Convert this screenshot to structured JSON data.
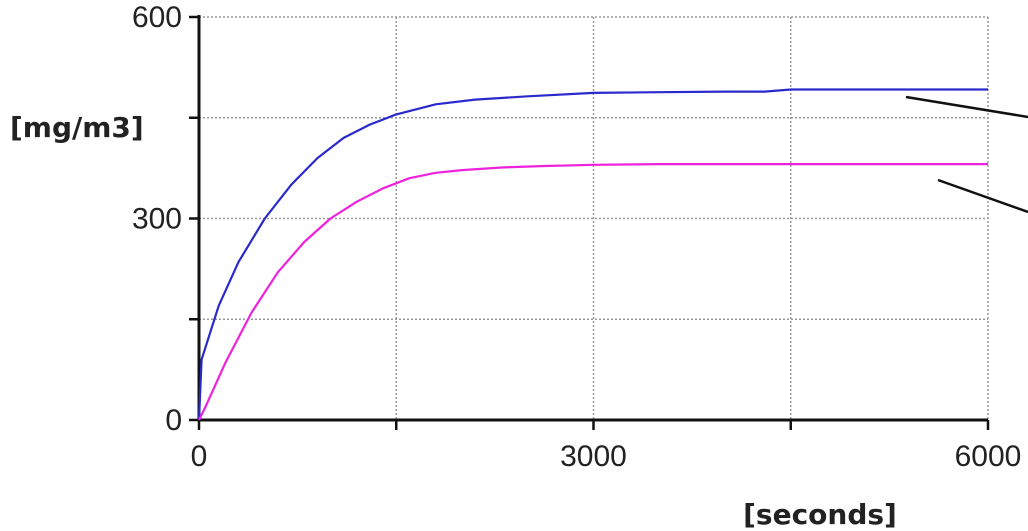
{
  "chart_data": {
    "type": "line",
    "title": "",
    "xlabel": "[seconds]",
    "ylabel": "[mg/m3]",
    "xlim": [
      0,
      6000
    ],
    "ylim": [
      0,
      600
    ],
    "x_ticks": [
      0,
      1500,
      3000,
      4500,
      6000
    ],
    "x_tick_labels": [
      "0",
      "",
      "3000",
      "",
      "6000"
    ],
    "y_ticks": [
      0,
      150,
      300,
      450,
      600
    ],
    "y_tick_labels": [
      "0",
      "",
      "300",
      "",
      "600"
    ],
    "grid": true,
    "legend": "none",
    "series": [
      {
        "color": "#2a2acc",
        "x": [
          0,
          20,
          150,
          300,
          500,
          700,
          900,
          1100,
          1300,
          1500,
          1800,
          2100,
          2500,
          3000,
          3500,
          4000,
          4300,
          4500,
          5000,
          5500,
          6000
        ],
        "values": [
          0,
          90,
          170,
          235,
          300,
          350,
          390,
          420,
          440,
          455,
          470,
          477,
          482,
          487,
          488,
          489,
          489,
          492,
          492,
          492,
          492
        ]
      },
      {
        "color": "#ee22dd",
        "x": [
          0,
          50,
          200,
          400,
          600,
          800,
          1000,
          1200,
          1400,
          1600,
          1800,
          2000,
          2300,
          2600,
          3000,
          3500,
          4000,
          4500,
          5000,
          5500,
          6000
        ],
        "values": [
          0,
          20,
          85,
          160,
          220,
          265,
          300,
          325,
          345,
          360,
          368,
          372,
          376,
          378,
          380,
          381,
          381,
          381,
          381,
          381,
          381
        ]
      }
    ],
    "annotations": [
      {
        "type": "leader-line",
        "target_series": 0
      },
      {
        "type": "leader-line",
        "target_series": 1
      }
    ]
  }
}
